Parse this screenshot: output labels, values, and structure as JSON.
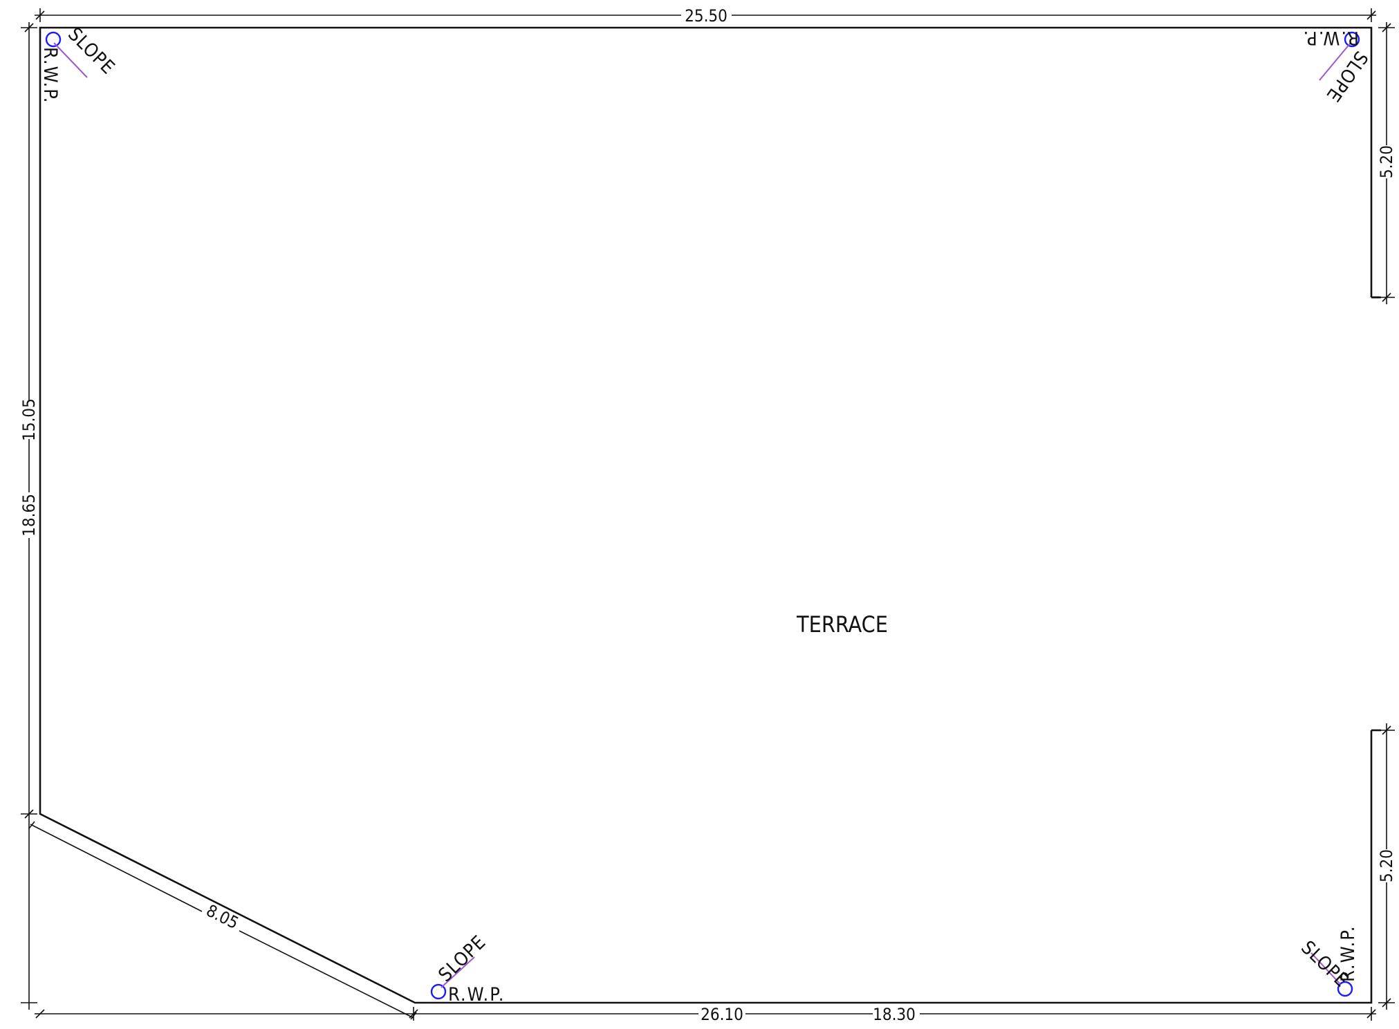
{
  "room": {
    "label": "TERRACE"
  },
  "dimensions": {
    "top": "25.50",
    "left_upper": "15.05",
    "left_lower": "18.65",
    "right_upper": "5.20",
    "right_lower": "5.20",
    "diagonal": "8.05",
    "bottom_a": "26.10",
    "bottom_b": "18.30"
  },
  "rainwater_pipes": [
    {
      "label": "R.W.P.",
      "slope": "SLOPE"
    },
    {
      "label": "R.W.P.",
      "slope": "SLOPE"
    },
    {
      "label": "R.W.P.",
      "slope": "SLOPE"
    },
    {
      "label": "R.W.P.",
      "slope": "SLOPE"
    }
  ],
  "colors": {
    "line": "#111111",
    "pipe": "#1a1aff",
    "slope_arrow": "#9b59d0"
  }
}
